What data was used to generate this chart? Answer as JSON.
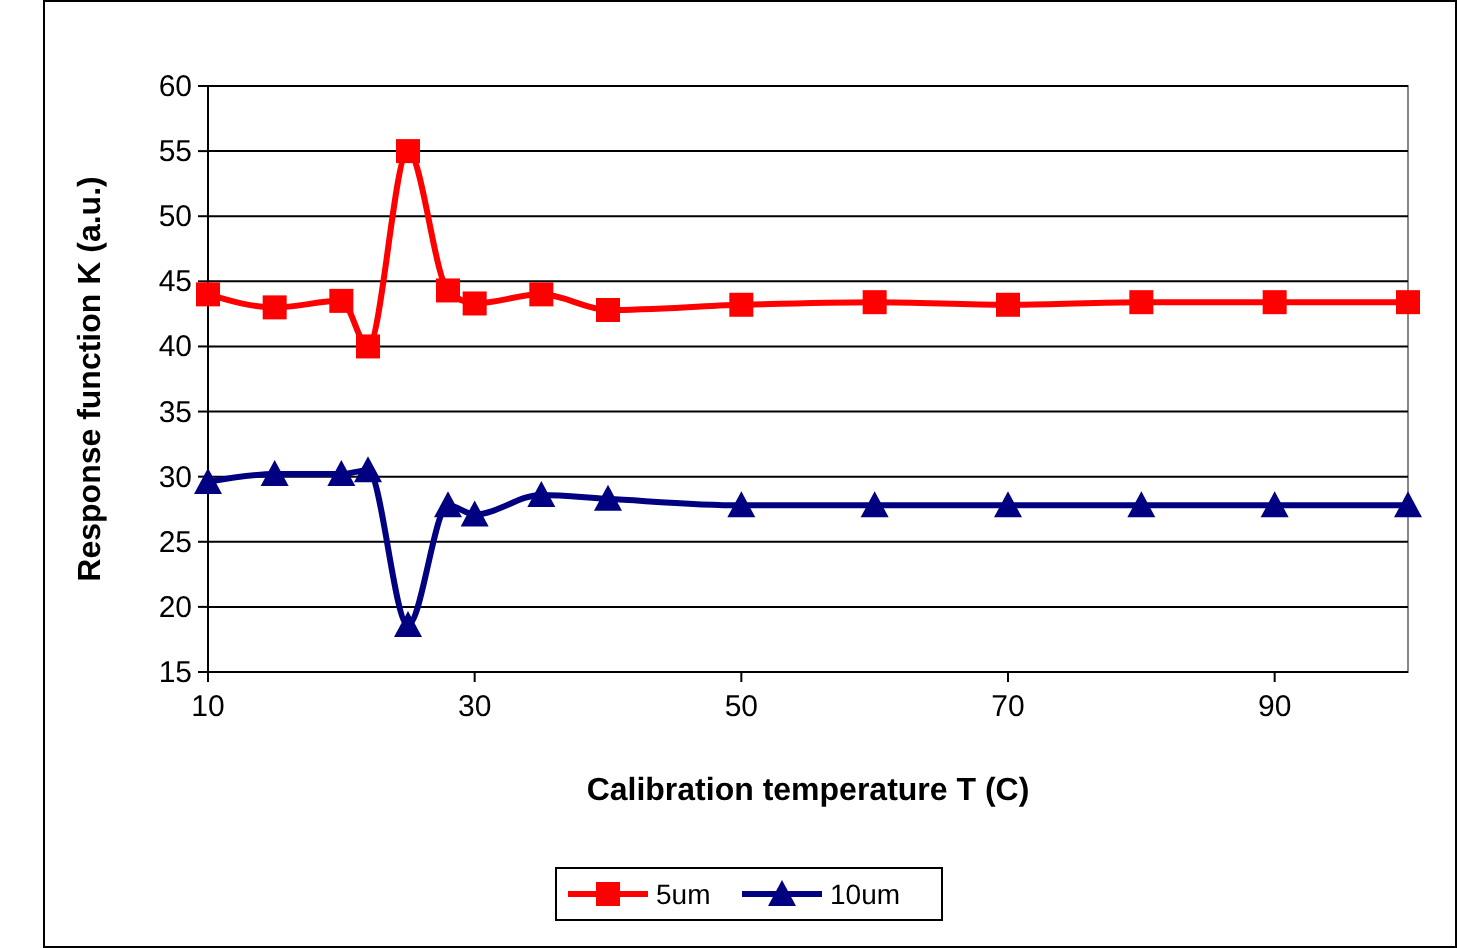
{
  "chart_data": {
    "type": "line",
    "xlabel": "Calibration temperature T (C)",
    "ylabel": "Response function K (a.u.)",
    "x": [
      10,
      15,
      20,
      22,
      25,
      28,
      30,
      35,
      40,
      50,
      60,
      70,
      80,
      90,
      100
    ],
    "series": [
      {
        "name": "5um",
        "color": "#ff0000",
        "marker": "square",
        "values": [
          44,
          43,
          43.5,
          40,
          55,
          44.3,
          43.3,
          44,
          42.8,
          43.2,
          43.4,
          43.2,
          43.4,
          43.4,
          43.4
        ]
      },
      {
        "name": "10um",
        "color": "#000080",
        "marker": "triangle",
        "values": [
          29.6,
          30.2,
          30.2,
          30.5,
          18.6,
          27.8,
          27.1,
          28.6,
          28.3,
          27.8,
          27.8,
          27.8,
          27.8,
          27.8,
          27.8
        ]
      }
    ],
    "xlim": [
      10,
      100
    ],
    "xticks": [
      10,
      30,
      50,
      70,
      90
    ],
    "ylim": [
      15,
      60
    ],
    "yticks": [
      15,
      20,
      25,
      30,
      35,
      40,
      45,
      50,
      55,
      60
    ],
    "grid": "y",
    "legend": "bottom",
    "line_style": "solid"
  }
}
